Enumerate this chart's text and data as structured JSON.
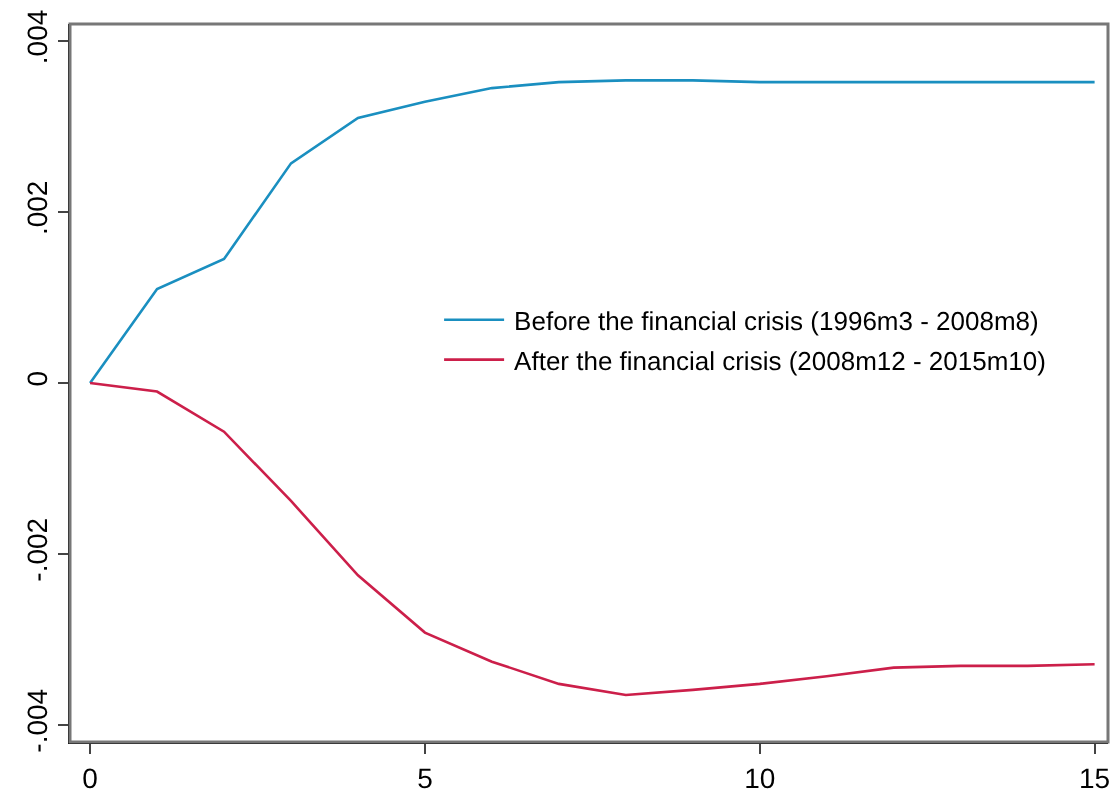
{
  "chart_data": {
    "type": "line",
    "x": [
      0,
      1,
      2,
      3,
      4,
      5,
      6,
      7,
      8,
      9,
      10,
      11,
      12,
      13,
      14,
      15
    ],
    "series": [
      {
        "name": "Before the financial crisis (1996m3 - 2008m8)",
        "color": "#1a8fc0",
        "values": [
          0,
          0.0011,
          0.00145,
          0.00257,
          0.0031,
          0.00329,
          0.00345,
          0.00352,
          0.00354,
          0.00354,
          0.00352,
          0.00352,
          0.00352,
          0.00352,
          0.00352,
          0.00352
        ]
      },
      {
        "name": "After the financial crisis (2008m12 - 2015m10)",
        "color": "#cc1f4a",
        "values": [
          0,
          -0.0001,
          -0.00057,
          -0.00138,
          -0.00225,
          -0.00292,
          -0.00326,
          -0.00352,
          -0.00365,
          -0.00359,
          -0.00352,
          -0.00343,
          -0.00333,
          -0.00331,
          -0.00331,
          -0.00329
        ]
      }
    ],
    "xlim": [
      -0.3,
      15.2
    ],
    "xticks": [
      0,
      5,
      10,
      15
    ],
    "ylim": [
      -0.0042,
      0.0042
    ],
    "yticks": [
      {
        "value": -0.004,
        "label": "-.004"
      },
      {
        "value": -0.002,
        "label": "-.002"
      },
      0,
      {
        "value": 0.002,
        "label": ".002"
      },
      {
        "value": 0.004,
        "label": ".004"
      }
    ],
    "legend": "right",
    "marker": "none",
    "line_style": "solid"
  }
}
